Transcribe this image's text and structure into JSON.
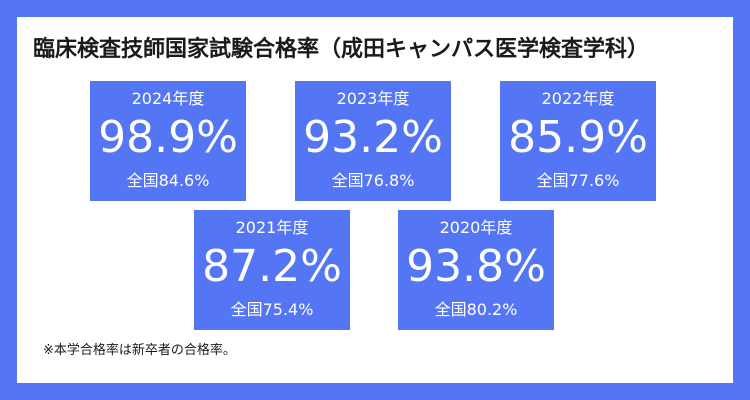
{
  "title": "臨床検査技師国家試験合格率（成田キャンパス医学検査学科）",
  "stats": [
    {
      "year": "2024年度",
      "rate": "98.9%",
      "national": "全国84.6%"
    },
    {
      "year": "2023年度",
      "rate": "93.2%",
      "national": "全国76.8%"
    },
    {
      "year": "2022年度",
      "rate": "85.9%",
      "national": "全国77.6%"
    },
    {
      "year": "2021年度",
      "rate": "87.2%",
      "national": "全国75.4%"
    },
    {
      "year": "2020年度",
      "rate": "93.8%",
      "national": "全国80.2%"
    }
  ],
  "note": "※本学合格率は新卒者の合格率。",
  "colors": {
    "accent": "#5476f4",
    "card": "#ffffff",
    "text": "#1a1a1a"
  }
}
